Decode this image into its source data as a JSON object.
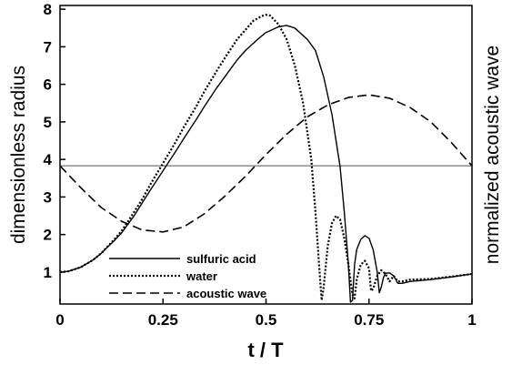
{
  "chart_data": {
    "type": "line",
    "xlabel": "t / T",
    "ylabel": "dimensionless radius",
    "ylabel_right": "normalized acoustic wave",
    "xlim": [
      0,
      1
    ],
    "ylim": [
      0.15,
      8.1
    ],
    "x_ticks": [
      "0",
      "0.25",
      "0.5",
      "0.75",
      "1"
    ],
    "y_ticks": [
      "1",
      "2",
      "3",
      "4",
      "5",
      "6",
      "7",
      "8"
    ],
    "reference_line_y": 3.83,
    "legend_position": "bottom-left",
    "series": [
      {
        "name": "sulfuric acid",
        "style": "solid",
        "points": [
          [
            0,
            1.0
          ],
          [
            0.02,
            1.02
          ],
          [
            0.05,
            1.13
          ],
          [
            0.08,
            1.32
          ],
          [
            0.1,
            1.5
          ],
          [
            0.13,
            1.82
          ],
          [
            0.15,
            2.05
          ],
          [
            0.18,
            2.5
          ],
          [
            0.2,
            2.85
          ],
          [
            0.22,
            3.2
          ],
          [
            0.25,
            3.7
          ],
          [
            0.28,
            4.2
          ],
          [
            0.3,
            4.55
          ],
          [
            0.33,
            5.05
          ],
          [
            0.35,
            5.4
          ],
          [
            0.38,
            5.9
          ],
          [
            0.4,
            6.2
          ],
          [
            0.43,
            6.65
          ],
          [
            0.45,
            6.9
          ],
          [
            0.48,
            7.2
          ],
          [
            0.5,
            7.38
          ],
          [
            0.53,
            7.53
          ],
          [
            0.55,
            7.57
          ],
          [
            0.57,
            7.5
          ],
          [
            0.6,
            7.2
          ],
          [
            0.62,
            6.9
          ],
          [
            0.64,
            6.2
          ],
          [
            0.66,
            5.2
          ],
          [
            0.68,
            3.8
          ],
          [
            0.69,
            2.6
          ],
          [
            0.7,
            1.2
          ],
          [
            0.705,
            0.2
          ],
          [
            0.71,
            0.25
          ],
          [
            0.715,
            1.2
          ],
          [
            0.72,
            1.6
          ],
          [
            0.73,
            1.87
          ],
          [
            0.74,
            1.97
          ],
          [
            0.75,
            1.9
          ],
          [
            0.76,
            1.6
          ],
          [
            0.77,
            1.0
          ],
          [
            0.775,
            0.45
          ],
          [
            0.78,
            0.6
          ],
          [
            0.785,
            0.85
          ],
          [
            0.79,
            0.97
          ],
          [
            0.8,
            0.98
          ],
          [
            0.81,
            0.9
          ],
          [
            0.82,
            0.7
          ],
          [
            0.83,
            0.7
          ],
          [
            0.85,
            0.75
          ],
          [
            0.9,
            0.8
          ],
          [
            0.95,
            0.87
          ],
          [
            1.0,
            0.95
          ]
        ]
      },
      {
        "name": "water",
        "style": "dotted",
        "points": [
          [
            0,
            1.0
          ],
          [
            0.02,
            1.02
          ],
          [
            0.05,
            1.13
          ],
          [
            0.08,
            1.32
          ],
          [
            0.1,
            1.5
          ],
          [
            0.13,
            1.85
          ],
          [
            0.15,
            2.1
          ],
          [
            0.18,
            2.6
          ],
          [
            0.2,
            2.95
          ],
          [
            0.22,
            3.35
          ],
          [
            0.25,
            3.9
          ],
          [
            0.28,
            4.45
          ],
          [
            0.3,
            4.85
          ],
          [
            0.33,
            5.4
          ],
          [
            0.35,
            5.8
          ],
          [
            0.38,
            6.35
          ],
          [
            0.4,
            6.7
          ],
          [
            0.43,
            7.2
          ],
          [
            0.45,
            7.45
          ],
          [
            0.47,
            7.7
          ],
          [
            0.49,
            7.82
          ],
          [
            0.5,
            7.85
          ],
          [
            0.51,
            7.83
          ],
          [
            0.53,
            7.6
          ],
          [
            0.55,
            7.2
          ],
          [
            0.57,
            6.5
          ],
          [
            0.59,
            5.5
          ],
          [
            0.61,
            4.0
          ],
          [
            0.62,
            2.6
          ],
          [
            0.63,
            1.0
          ],
          [
            0.635,
            0.25
          ],
          [
            0.64,
            0.6
          ],
          [
            0.65,
            1.7
          ],
          [
            0.66,
            2.3
          ],
          [
            0.67,
            2.5
          ],
          [
            0.68,
            2.4
          ],
          [
            0.69,
            1.9
          ],
          [
            0.7,
            1.2
          ],
          [
            0.71,
            0.4
          ],
          [
            0.715,
            0.3
          ],
          [
            0.72,
            0.8
          ],
          [
            0.73,
            1.2
          ],
          [
            0.74,
            1.3
          ],
          [
            0.75,
            1.1
          ],
          [
            0.755,
            0.5
          ],
          [
            0.76,
            0.55
          ],
          [
            0.77,
            0.9
          ],
          [
            0.78,
            1.05
          ],
          [
            0.79,
            0.95
          ],
          [
            0.8,
            0.75
          ],
          [
            0.81,
            0.9
          ],
          [
            0.82,
            0.75
          ],
          [
            0.83,
            0.75
          ],
          [
            0.85,
            0.8
          ],
          [
            0.9,
            0.82
          ],
          [
            0.95,
            0.88
          ],
          [
            1.0,
            0.95
          ]
        ]
      },
      {
        "name": "acoustic wave",
        "style": "dashed",
        "points": [
          [
            0,
            3.83
          ],
          [
            0.05,
            3.25
          ],
          [
            0.1,
            2.72
          ],
          [
            0.15,
            2.35
          ],
          [
            0.2,
            2.12
          ],
          [
            0.25,
            2.07
          ],
          [
            0.3,
            2.2
          ],
          [
            0.35,
            2.55
          ],
          [
            0.4,
            3.02
          ],
          [
            0.45,
            3.55
          ],
          [
            0.5,
            4.13
          ],
          [
            0.55,
            4.67
          ],
          [
            0.6,
            5.13
          ],
          [
            0.65,
            5.45
          ],
          [
            0.7,
            5.65
          ],
          [
            0.75,
            5.72
          ],
          [
            0.8,
            5.63
          ],
          [
            0.85,
            5.38
          ],
          [
            0.9,
            5.0
          ],
          [
            0.95,
            4.45
          ],
          [
            1.0,
            3.83
          ]
        ]
      }
    ]
  }
}
